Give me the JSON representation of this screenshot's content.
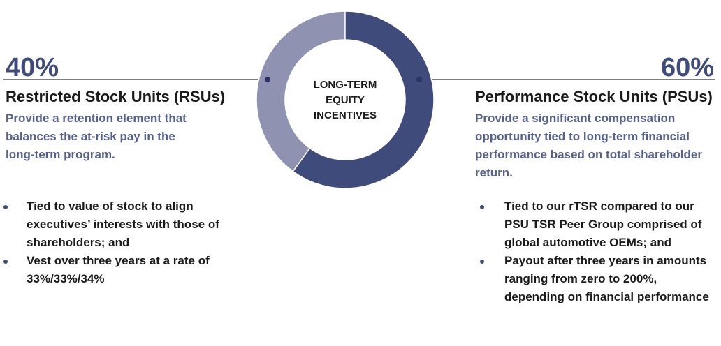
{
  "chart_data": {
    "type": "donut",
    "center_label": "LONG-TERM EQUITY INCENTIVES",
    "categories": [
      "Restricted Stock Units (RSUs)",
      "Performance Stock Units (PSUs)"
    ],
    "values": [
      40,
      60
    ],
    "value_labels": [
      "40%",
      "60%"
    ],
    "colors": [
      "#8f92b1",
      "#3f4b7b"
    ],
    "descriptions": [
      "Provide a retention element that balances the at-risk pay in the long-term program.",
      "Provide a significant compensation opportunity tied to long-term financial performance based on total shareholder return."
    ],
    "bullets": [
      [
        "Tied to value of stock to align executives’ interests with those of shareholders; and",
        "Vest over three years at a rate of 33%/33%/34%"
      ],
      [
        "Tied to our rTSR compared to our PSU TSR Peer Group comprised of global automotive OEMs; and",
        "Payout after three years in amounts ranging from zero to 200%, depending on financial performance"
      ]
    ]
  }
}
